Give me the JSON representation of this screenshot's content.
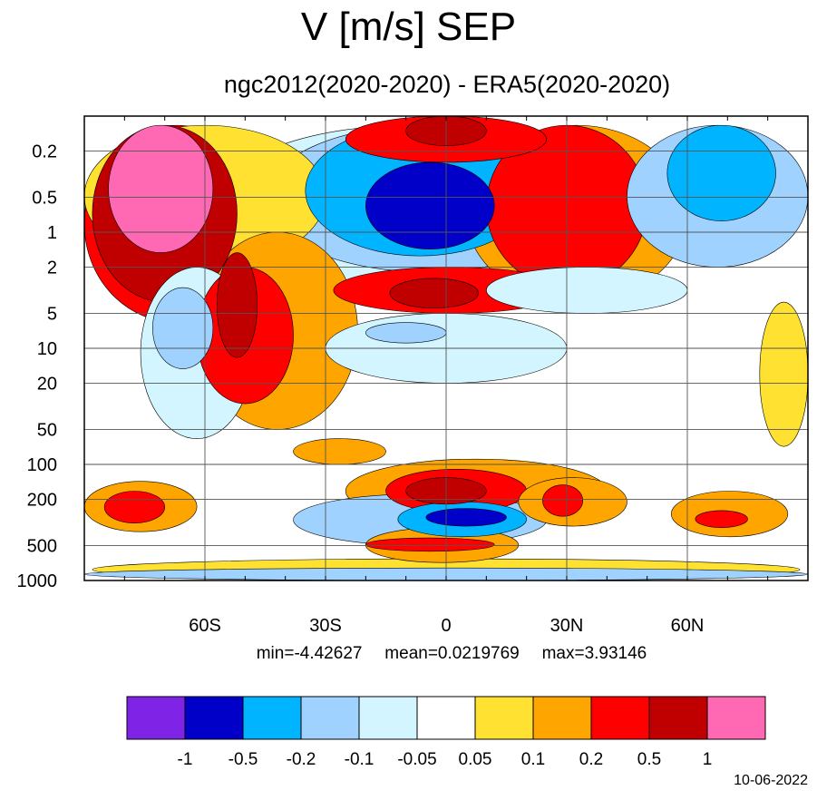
{
  "title": "V [m/s] SEP",
  "subtitle": "ngc2012(2020-2020) - ERA5(2020-2020)",
  "stats": {
    "min_label": "min=-4.42627",
    "mean_label": "mean=0.0219769",
    "max_label": "max=3.93146"
  },
  "date": "10-06-2022",
  "chart_data": {
    "type": "heatmap",
    "title": "V [m/s] SEP",
    "subtitle": "ngc2012(2020-2020) - ERA5(2020-2020)",
    "xlabel": "",
    "ylabel": "",
    "x_range": [
      -90,
      90
    ],
    "x_ticks": [
      {
        "value": -60,
        "label": "60S"
      },
      {
        "value": -30,
        "label": "30S"
      },
      {
        "value": 0,
        "label": "0"
      },
      {
        "value": 30,
        "label": "30N"
      },
      {
        "value": 60,
        "label": "60N"
      }
    ],
    "y_scale": "log",
    "y_inverted": true,
    "y_range": [
      1000,
      0.1
    ],
    "y_ticks": [
      0.2,
      0.5,
      1,
      2,
      5,
      10,
      20,
      50,
      100,
      200,
      500,
      1000
    ],
    "y_tick_labels": [
      "0.2",
      "0.5",
      "1",
      "2",
      "5",
      "10",
      "20",
      "50",
      "100",
      "200",
      "500",
      "1000"
    ],
    "grid": true,
    "colorbar": {
      "levels": [
        "-1",
        "-0.5",
        "-0.2",
        "-0.1",
        "-0.05",
        "0.05",
        "0.1",
        "0.2",
        "0.5",
        "1"
      ],
      "colors": [
        "#7f23e6",
        "#0000c8",
        "#00b4ff",
        "#a0d2ff",
        "#d2f5ff",
        "#ffffff",
        "#ffe132",
        "#ffa500",
        "#ff0000",
        "#c00000",
        "#ff69b4"
      ],
      "placement": "bottom"
    },
    "regions": [
      {
        "lat": [
          -84,
          -58
        ],
        "p": [
          0.12,
          1.5
        ],
        "value": 1.5
      },
      {
        "lat": [
          -88,
          -52
        ],
        "p": [
          0.12,
          4
        ],
        "value": 0.7
      },
      {
        "lat": [
          -57,
          -47
        ],
        "p": [
          1.5,
          12
        ],
        "value": 0.7
      },
      {
        "lat": [
          -90,
          -44
        ],
        "p": [
          0.12,
          6
        ],
        "value": 0.3
      },
      {
        "lat": [
          -62,
          -38
        ],
        "p": [
          2,
          30
        ],
        "value": 0.3
      },
      {
        "lat": [
          -62,
          -22
        ],
        "p": [
          1,
          50
        ],
        "value": 0.15
      },
      {
        "lat": [
          -90,
          -30
        ],
        "p": [
          0.12,
          2
        ],
        "value": 0.07
      },
      {
        "lat": [
          -73,
          -58
        ],
        "p": [
          3,
          15
        ],
        "value": -0.15
      },
      {
        "lat": [
          -76,
          -48
        ],
        "p": [
          2,
          60
        ],
        "value": -0.07
      },
      {
        "lat": [
          -20,
          12
        ],
        "p": [
          0.25,
          1.4
        ],
        "value": -0.7
      },
      {
        "lat": [
          -35,
          22
        ],
        "p": [
          0.12,
          1.6
        ],
        "value": -0.3
      },
      {
        "lat": [
          -45,
          35
        ],
        "p": [
          0.12,
          2.2
        ],
        "value": -0.15
      },
      {
        "lat": [
          -58,
          40
        ],
        "p": [
          0.12,
          3
        ],
        "value": -0.07
      },
      {
        "lat": [
          -14,
          8
        ],
        "p": [
          2.5,
          4.5
        ],
        "value": 0.7
      },
      {
        "lat": [
          -28,
          30
        ],
        "p": [
          2,
          5
        ],
        "value": 0.3
      },
      {
        "lat": [
          10,
          50
        ],
        "p": [
          0.12,
          3
        ],
        "value": 0.3
      },
      {
        "lat": [
          5,
          60
        ],
        "p": [
          0.12,
          4
        ],
        "value": 0.15
      },
      {
        "lat": [
          -20,
          0
        ],
        "p": [
          6,
          9
        ],
        "value": -0.15
      },
      {
        "lat": [
          -30,
          30
        ],
        "p": [
          5,
          20
        ],
        "value": -0.07
      },
      {
        "lat": [
          55,
          82
        ],
        "p": [
          0.12,
          0.8
        ],
        "value": -0.3
      },
      {
        "lat": [
          45,
          90
        ],
        "p": [
          0.12,
          2
        ],
        "value": -0.15
      },
      {
        "lat": [
          10,
          60
        ],
        "p": [
          2,
          5
        ],
        "value": -0.07
      },
      {
        "lat": [
          78,
          90
        ],
        "p": [
          4,
          70
        ],
        "value": 0.07
      },
      {
        "lat": [
          -10,
          10
        ],
        "p": [
          0.1,
          0.18
        ],
        "value": 0.7
      },
      {
        "lat": [
          -25,
          25
        ],
        "p": [
          0.1,
          0.25
        ],
        "value": 0.3
      },
      {
        "lat": [
          -38,
          -15
        ],
        "p": [
          60,
          100
        ],
        "value": 0.15
      },
      {
        "lat": [
          -10,
          10
        ],
        "p": [
          130,
          220
        ],
        "value": 0.7
      },
      {
        "lat": [
          -15,
          20
        ],
        "p": [
          110,
          260
        ],
        "value": 0.3
      },
      {
        "lat": [
          -25,
          40
        ],
        "p": [
          90,
          320
        ],
        "value": 0.15
      },
      {
        "lat": [
          -5,
          15
        ],
        "p": [
          240,
          340
        ],
        "value": -0.7
      },
      {
        "lat": [
          -12,
          20
        ],
        "p": [
          210,
          420
        ],
        "value": -0.3
      },
      {
        "lat": [
          -38,
          25
        ],
        "p": [
          180,
          500
        ],
        "value": -0.15
      },
      {
        "lat": [
          -85,
          -70
        ],
        "p": [
          170,
          320
        ],
        "value": 0.3
      },
      {
        "lat": [
          -90,
          -62
        ],
        "p": [
          140,
          380
        ],
        "value": 0.15
      },
      {
        "lat": [
          24,
          34
        ],
        "p": [
          150,
          280
        ],
        "value": 0.3
      },
      {
        "lat": [
          18,
          45
        ],
        "p": [
          130,
          340
        ],
        "value": 0.15
      },
      {
        "lat": [
          62,
          75
        ],
        "p": [
          250,
          350
        ],
        "value": 0.3
      },
      {
        "lat": [
          56,
          85
        ],
        "p": [
          170,
          420
        ],
        "value": 0.15
      },
      {
        "lat": [
          -20,
          12
        ],
        "p": [
          430,
          560
        ],
        "value": 0.3
      },
      {
        "lat": [
          -20,
          18
        ],
        "p": [
          350,
          700
        ],
        "value": 0.15
      },
      {
        "lat": [
          -90,
          90
        ],
        "p": [
          780,
          1000
        ],
        "value": -0.15
      },
      {
        "lat": [
          -88,
          88
        ],
        "p": [
          650,
          1000
        ],
        "value": 0.07
      }
    ]
  }
}
